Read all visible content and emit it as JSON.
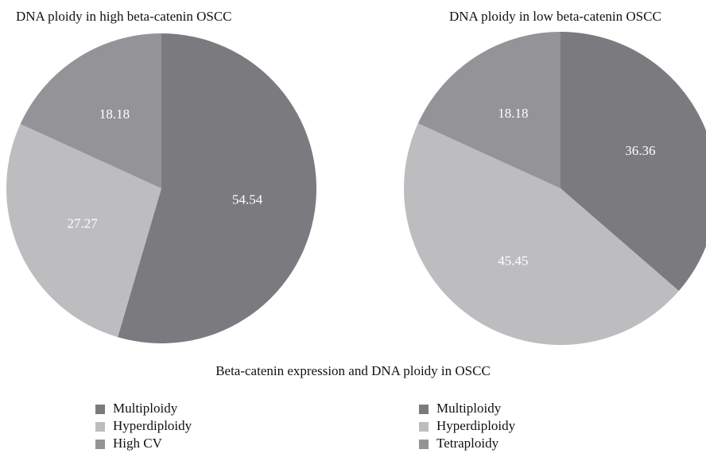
{
  "chart_data": [
    {
      "type": "pie",
      "title": "DNA ploidy in high beta-catenin OSCC",
      "categories": [
        "Multiploidy",
        "Hyperdiploidy",
        "High CV"
      ],
      "values": [
        54.54,
        27.27,
        18.18
      ],
      "colors": [
        "#7b7b7f",
        "#bdbdc0",
        "#949498"
      ]
    },
    {
      "type": "pie",
      "title": "DNA ploidy in low beta-catenin OSCC",
      "categories": [
        "Multiploidy",
        "Hyperdiploidy",
        "Tetraploidy"
      ],
      "values": [
        36.36,
        45.45,
        18.18
      ],
      "colors": [
        "#7b7b7f",
        "#bdbdc0",
        "#949498"
      ]
    }
  ],
  "caption": "Beta-catenin expression and DNA ploidy in OSCC"
}
